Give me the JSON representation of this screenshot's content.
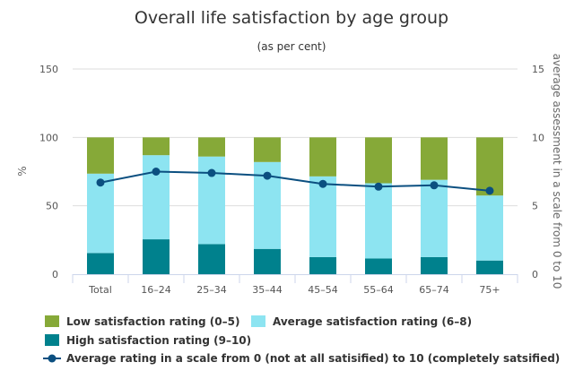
{
  "chart_data": {
    "type": "bar",
    "stacked": true,
    "title": "Overall life satisfaction by age group",
    "subtitle": "(as per cent)",
    "ylabel": "%",
    "y2label": "average assessment in a scale from 0 to 10",
    "ylim": [
      0,
      150
    ],
    "y2lim": [
      0,
      15
    ],
    "yticks": [
      0,
      50,
      100,
      150
    ],
    "y2ticks": [
      0,
      5,
      10,
      15
    ],
    "grid": true,
    "legend_position": "bottom-left",
    "categories": [
      "Total",
      "16–24",
      "25–34",
      "35–44",
      "45–54",
      "55–64",
      "65–74",
      "75+"
    ],
    "series": [
      {
        "name": "High satisfaction rating (9–10)",
        "kind": "bar",
        "color": "#00818d",
        "values": [
          15.5,
          25.5,
          22,
          18.5,
          12.5,
          11.5,
          12.5,
          10
        ]
      },
      {
        "name": "Average satisfaction rating (6–8)",
        "kind": "bar",
        "color": "#8de4f1",
        "values": [
          58,
          61.5,
          64,
          63.5,
          59,
          55,
          56.5,
          47.5
        ]
      },
      {
        "name": "Low satisfaction rating (0–5)",
        "kind": "bar",
        "color": "#86a938",
        "values": [
          26.5,
          13,
          14,
          18,
          28.5,
          33.5,
          31,
          42.5
        ]
      },
      {
        "name": "Average rating in a scale from 0 (not at all satisified) to 10 (completely satsified)",
        "kind": "line",
        "axis": "right",
        "color": "#0b4f80",
        "values": [
          6.7,
          7.5,
          7.4,
          7.2,
          6.6,
          6.4,
          6.5,
          6.1
        ]
      }
    ]
  }
}
